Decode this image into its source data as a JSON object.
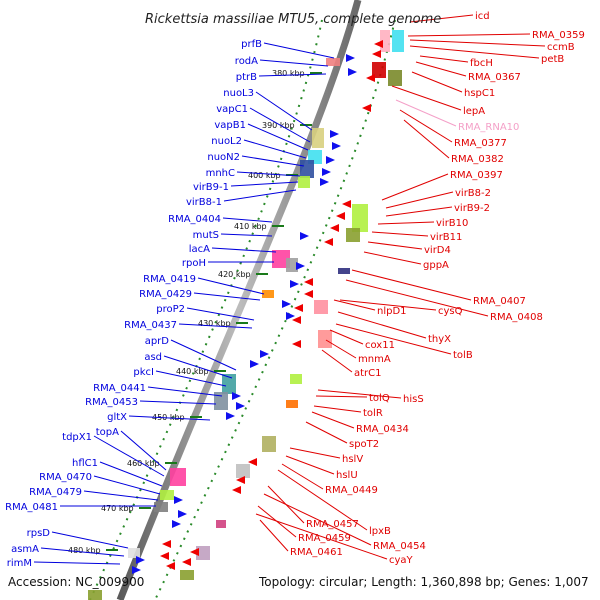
{
  "title": "Rickettsia massiliae MTU5, complete genome",
  "accession": "Accession: NC_009900",
  "topology": "Topology: circular; Length: 1,360,898 bp; Genes: 1,007",
  "colors": {
    "reverse_label": "#0000dd",
    "forward_label": "#e00000",
    "rna_label": "#f4a0c8",
    "backbone": "#8c8c8c",
    "gc_ticks": "#2a8a2a"
  },
  "kbp_ticks": [
    "380 kbp",
    "390 kbp",
    "400 kbp",
    "410 kbp",
    "420 kbp",
    "430 kbp",
    "440 kbp",
    "450 kbp",
    "460 kbp",
    "470 kbp",
    "480 kbp"
  ],
  "left_labels": [
    "prfB",
    "rodA",
    "ptrB",
    "nuoL3",
    "vapC1",
    "vapB1",
    "nuoL2",
    "nuoN2",
    "mnhC",
    "virB9-1",
    "virB8-1",
    "RMA_0404",
    "mutS",
    "lacA",
    "rpoH",
    "RMA_0419",
    "RMA_0429",
    "proP2",
    "RMA_0437",
    "aprD",
    "asd",
    "pkcI",
    "RMA_0441",
    "RMA_0453",
    "gltX",
    "topA",
    "tdpX1",
    "hflC1",
    "RMA_0470",
    "RMA_0479",
    "RMA_0481",
    "rpsD",
    "asmA",
    "rimM"
  ],
  "right_labels": [
    "icd",
    "RMA_0359",
    "ccmB",
    "petB",
    "fbcH",
    "RMA_0367",
    "hspC1",
    "lepA",
    "RMA_RNA10",
    "RMA_0377",
    "RMA_0382",
    "RMA_0397",
    "virB8-2",
    "virB9-2",
    "virB10",
    "virB11",
    "virD4",
    "gppA",
    "RMA_0407",
    "RMA_0408",
    "cysQ",
    "nlpD1",
    "thyX",
    "tolB",
    "cox11",
    "mnmA",
    "atrC1",
    "hisS",
    "tolQ",
    "tolR",
    "RMA_0434",
    "spoT2",
    "hslV",
    "hslU",
    "RMA_0449",
    "lpxB",
    "RMA_0457",
    "RMA_0454",
    "RMA_0459",
    "cyaY",
    "RMA_0461"
  ]
}
